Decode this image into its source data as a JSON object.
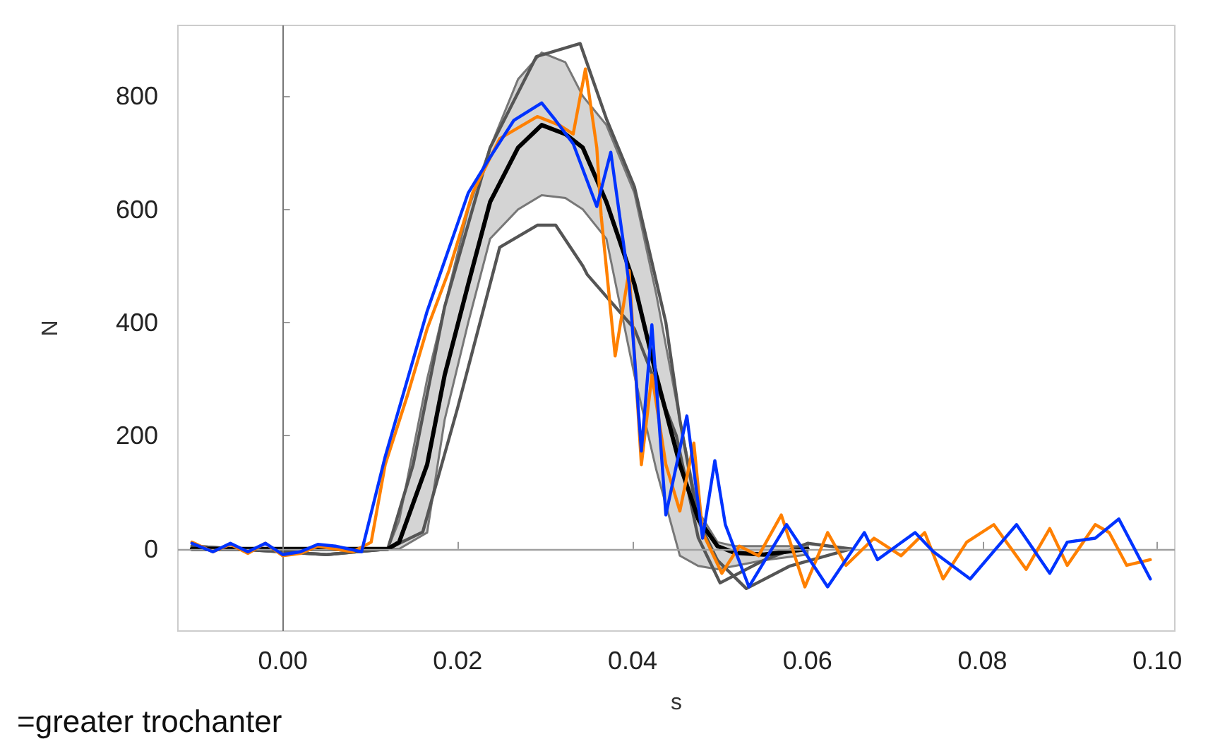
{
  "chart_data": {
    "type": "line",
    "xlabel": "s",
    "ylabel": "N",
    "annotations": [
      "=greater trochanter"
    ],
    "xlim": [
      -0.012,
      0.102
    ],
    "ylim": [
      -145,
      925
    ],
    "xticks": [
      {
        "value": 0,
        "label": "0.00"
      },
      {
        "value": 0.02,
        "label": "0.02"
      },
      {
        "value": 0.04,
        "label": "0.04"
      },
      {
        "value": 0.06,
        "label": "0.06"
      },
      {
        "value": 0.08,
        "label": "0.08"
      },
      {
        "value": 0.1,
        "label": "0.10"
      }
    ],
    "yticks": [
      0,
      200,
      400,
      600,
      800
    ],
    "grid": false,
    "marker": "none",
    "line_style": "solid",
    "ref_lines": [
      {
        "axis": "x",
        "value": 0,
        "color": "#777777"
      },
      {
        "axis": "y",
        "value": 0,
        "color": "#a0a0a0"
      }
    ],
    "series": [
      {
        "color": "#555555",
        "x": [
          -0.0104,
          0.005,
          0.012,
          0.016,
          0.02,
          0.0248,
          0.0291,
          0.0312,
          0.0343,
          0.0348,
          0.0402,
          0.045,
          0.0475,
          0.05,
          0.055,
          0.06,
          0.065
        ],
        "values": [
          5,
          -10,
          0,
          30,
          250,
          533,
          572,
          572,
          500,
          485,
          389,
          200,
          20,
          -60,
          -20,
          10,
          0
        ]
      },
      {
        "color": "#555555",
        "x": [
          -0.0104,
          0.005,
          0.012,
          0.0149,
          0.0185,
          0.0237,
          0.029,
          0.034,
          0.037,
          0.0402,
          0.0438,
          0.0454,
          0.0475,
          0.0497,
          0.053,
          0.058,
          0.065
        ],
        "values": [
          5,
          -10,
          0,
          149,
          428,
          709,
          870,
          893,
          760,
          640,
          400,
          228,
          50,
          -20,
          -70,
          -30,
          0
        ]
      },
      {
        "color": "#000000",
        "x": [
          -0.0104,
          0.005,
          0.012,
          0.0133,
          0.0165,
          0.0185,
          0.0212,
          0.0237,
          0.0269,
          0.0296,
          0.0323,
          0.0343,
          0.037,
          0.0402,
          0.0427,
          0.0454,
          0.0475,
          0.0497,
          0.0517,
          0.055,
          0.06
        ],
        "values": [
          0,
          0,
          0,
          12,
          149,
          307,
          468,
          613,
          709,
          749,
          733,
          709,
          613,
          468,
          307,
          149,
          53,
          5,
          -7,
          -10,
          0
        ],
        "lower": [
          0,
          0,
          0,
          0,
          29,
          228,
          400,
          548,
          600,
          625,
          620,
          600,
          548,
          307,
          140,
          -12,
          -30,
          -36,
          -30,
          -20,
          -10
        ],
        "upper": [
          0,
          0,
          0,
          50,
          300,
          428,
          600,
          709,
          830,
          877,
          860,
          800,
          749,
          629,
          450,
          228,
          67,
          12,
          5,
          5,
          5
        ]
      },
      {
        "color": "#ff8000",
        "x": [
          -0.0104,
          -0.008,
          -0.006,
          -0.004,
          -0.002,
          0,
          0.002,
          0.004,
          0.006,
          0.008,
          0.0101,
          0.0117,
          0.0142,
          0.0165,
          0.019,
          0.0217,
          0.0248,
          0.0291,
          0.0316,
          0.0332,
          0.0346,
          0.0359,
          0.0364,
          0.038,
          0.0396,
          0.041,
          0.0422,
          0.0438,
          0.0454,
          0.047,
          0.048,
          0.0502,
          0.0522,
          0.0544,
          0.057,
          0.0597,
          0.0623,
          0.0644,
          0.0676,
          0.0707,
          0.0734,
          0.0755,
          0.0782,
          0.0813,
          0.085,
          0.0877,
          0.0897,
          0.0929,
          0.0945,
          0.0965,
          0.0992
        ],
        "values": [
          12,
          -5,
          8,
          -8,
          10,
          -12,
          -8,
          5,
          0,
          -5,
          12,
          149,
          269,
          389,
          492,
          629,
          725,
          764,
          749,
          733,
          848,
          709,
          589,
          341,
          492,
          149,
          307,
          149,
          67,
          187,
          29,
          -43,
          5,
          -12,
          60,
          -67,
          29,
          -29,
          19,
          -12,
          29,
          -53,
          12,
          43,
          -36,
          36,
          -29,
          43,
          29,
          -29,
          -19
        ]
      },
      {
        "color": "#0033ff",
        "x": [
          -0.0104,
          -0.008,
          -0.006,
          -0.004,
          -0.002,
          0,
          0.002,
          0.004,
          0.006,
          0.009,
          0.0117,
          0.0165,
          0.0212,
          0.0237,
          0.0264,
          0.0296,
          0.0312,
          0.0332,
          0.0359,
          0.0375,
          0.0396,
          0.041,
          0.0422,
          0.0438,
          0.0462,
          0.048,
          0.0494,
          0.0506,
          0.0533,
          0.0576,
          0.0623,
          0.0665,
          0.068,
          0.0723,
          0.0744,
          0.0786,
          0.0839,
          0.0877,
          0.0897,
          0.0929,
          0.0956,
          0.0992
        ],
        "values": [
          10,
          -5,
          10,
          -5,
          10,
          -10,
          -5,
          8,
          5,
          -5,
          163,
          420,
          629,
          692,
          757,
          788,
          757,
          716,
          605,
          701,
          468,
          173,
          396,
          60,
          235,
          19,
          156,
          43,
          -67,
          43,
          -67,
          29,
          -19,
          29,
          -5,
          -53,
          43,
          -43,
          12,
          19,
          53,
          -53
        ]
      }
    ]
  }
}
